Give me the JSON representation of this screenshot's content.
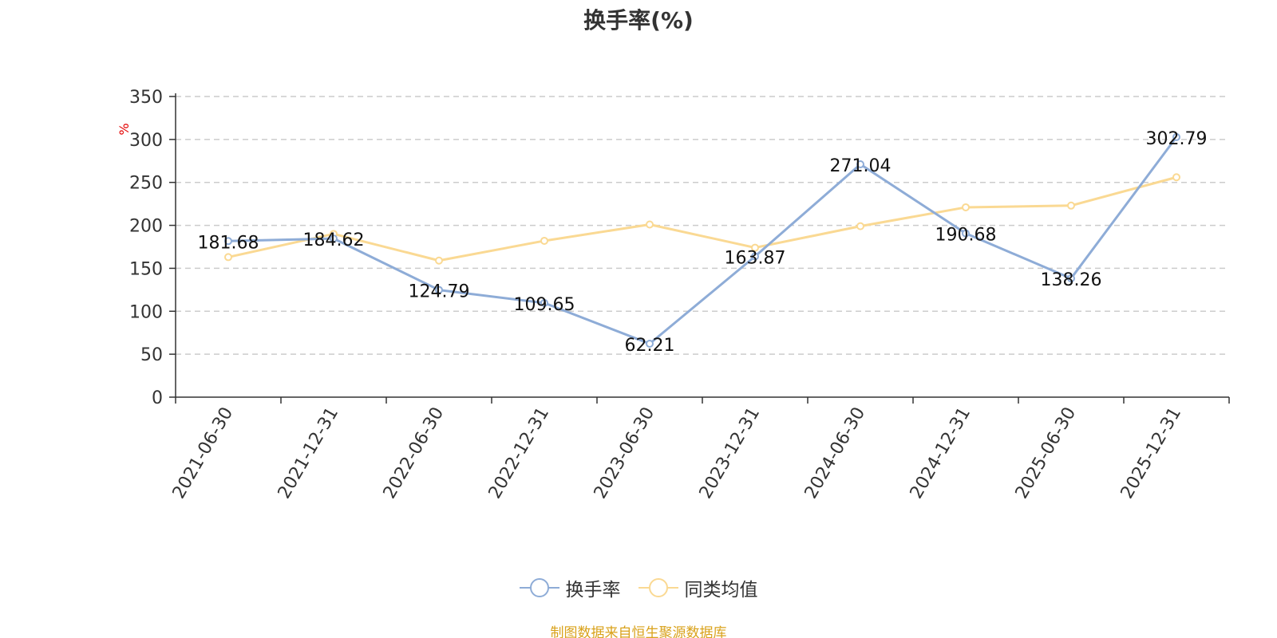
{
  "chart_data": {
    "type": "line",
    "title": "换手率(%)",
    "ylabel": "%",
    "ylim": [
      0,
      350
    ],
    "yticks": [
      0,
      50,
      100,
      150,
      200,
      250,
      300,
      350
    ],
    "grid": true,
    "categories": [
      "2021-06-30",
      "2021-12-31",
      "2022-06-30",
      "2022-12-31",
      "2023-06-30",
      "2023-12-31",
      "2024-06-30",
      "2024-12-31",
      "2025-06-30",
      "2025-12-31"
    ],
    "series": [
      {
        "name": "换手率",
        "color": "#8eacd7",
        "values": [
          181.68,
          184.62,
          124.79,
          109.65,
          62.21,
          163.87,
          271.04,
          190.68,
          138.26,
          302.79
        ],
        "labels": [
          "181.68",
          "184.62",
          "124.79",
          "109.65",
          "62.21",
          "163.87",
          "271.04",
          "190.68",
          "138.26",
          "302.79"
        ]
      },
      {
        "name": "同类均值",
        "color": "#fad993",
        "values": [
          163,
          190,
          159,
          182,
          201,
          174,
          199,
          221,
          223,
          256
        ]
      }
    ],
    "legend_position": "bottom-center"
  },
  "colors": {
    "axis": "#333333",
    "grid": "#cccccc",
    "ylabel": "#e30000",
    "source": "#d9a21b"
  },
  "source_text": "制图数据来自恒生聚源数据库"
}
